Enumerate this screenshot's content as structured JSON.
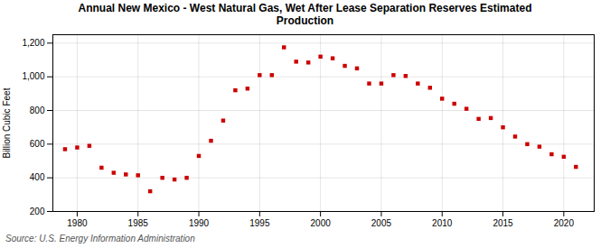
{
  "chart_data": {
    "type": "scatter",
    "title": "Annual New Mexico - West Natural Gas, Wet After Lease Separation Reserves Estimated\nProduction",
    "ylabel": "Billion Cubic Feet",
    "source": "Source: U.S. Energy Information Administration",
    "color": "#cc0000",
    "marker": "square",
    "x": [
      1979,
      1980,
      1981,
      1982,
      1983,
      1984,
      1985,
      1986,
      1987,
      1988,
      1989,
      1990,
      1991,
      1992,
      1993,
      1994,
      1995,
      1996,
      1997,
      1998,
      1999,
      2000,
      2001,
      2002,
      2003,
      2004,
      2005,
      2006,
      2007,
      2008,
      2009,
      2010,
      2011,
      2012,
      2013,
      2014,
      2015,
      2016,
      2017,
      2018,
      2019,
      2020,
      2021
    ],
    "values": [
      570,
      580,
      590,
      460,
      430,
      420,
      415,
      320,
      400,
      390,
      400,
      530,
      620,
      740,
      920,
      930,
      1010,
      1010,
      1175,
      1090,
      1085,
      1120,
      1110,
      1065,
      1050,
      960,
      960,
      1010,
      1005,
      960,
      935,
      870,
      840,
      810,
      750,
      755,
      700,
      645,
      600,
      585,
      540,
      525,
      465
    ],
    "xlim": [
      1978,
      2022.5
    ],
    "xticks": [
      1980,
      1985,
      1990,
      1995,
      2000,
      2005,
      2010,
      2015,
      2020
    ],
    "ylim": [
      200,
      1250
    ],
    "yticks": [
      200,
      400,
      600,
      800,
      {
        "value": 1000,
        "label": "1,000"
      },
      {
        "value": 1200,
        "label": "1,200"
      }
    ],
    "grid": true
  }
}
